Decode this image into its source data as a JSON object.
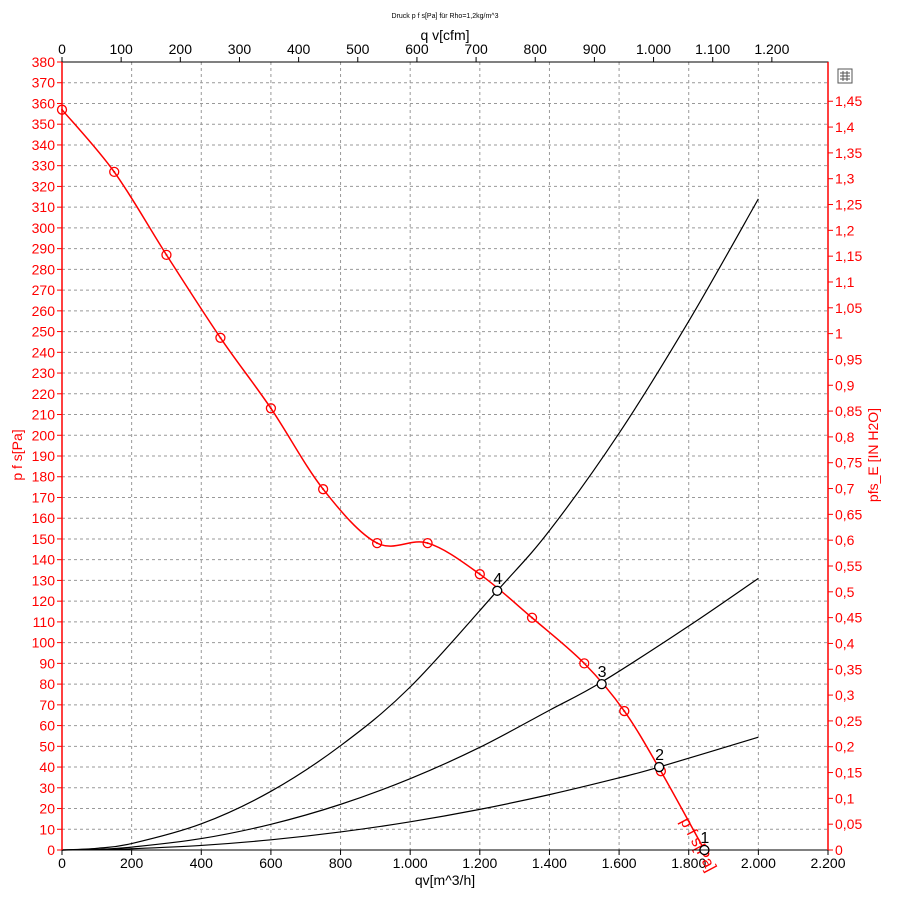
{
  "chart_data": {
    "type": "line",
    "title": "Druck p f s[Pa] für Rho=1,2kg/m^3",
    "xlabel": "qv[m^3/h]",
    "x2label": "q v[cfm]",
    "ylabel": "p f s[Pa]",
    "y2label": "pfs_E [IN H2O]",
    "xlim": [
      0,
      2200
    ],
    "ylim": [
      0,
      380
    ],
    "x2lim": [
      0,
      1294.9
    ],
    "y2lim": [
      0,
      1.526
    ],
    "x_ticks": [
      "0",
      "200",
      "400",
      "600",
      "800",
      "1.000",
      "1.200",
      "1.400",
      "1.600",
      "1.800",
      "2.000",
      "2.200"
    ],
    "x2_ticks": [
      "0",
      "100",
      "200",
      "300",
      "400",
      "500",
      "600",
      "700",
      "800",
      "900",
      "1.000",
      "1.100",
      "1.200"
    ],
    "y_ticks": [
      "0",
      "10",
      "20",
      "30",
      "40",
      "50",
      "60",
      "70",
      "80",
      "90",
      "100",
      "110",
      "120",
      "130",
      "140",
      "150",
      "160",
      "170",
      "180",
      "190",
      "200",
      "210",
      "220",
      "230",
      "240",
      "250",
      "260",
      "270",
      "280",
      "290",
      "300",
      "310",
      "320",
      "330",
      "340",
      "350",
      "360",
      "370",
      "380"
    ],
    "y2_ticks": [
      "0",
      "0,05",
      "0,1",
      "0,15",
      "0,2",
      "0,25",
      "0,3",
      "0,35",
      "0,4",
      "0,45",
      "0,5",
      "0,55",
      "0,6",
      "0,65",
      "0,7",
      "0,75",
      "0,8",
      "0,85",
      "0,9",
      "0,95",
      "1",
      "1,05",
      "1,1",
      "1,15",
      "1,2",
      "1,25",
      "1,3",
      "1,35",
      "1,4",
      "1,45"
    ],
    "grid": true,
    "fan_curve": {
      "name": "p f s[Pa]",
      "color": "#ff0000",
      "x": [
        0,
        150,
        300,
        455,
        600,
        750,
        905,
        1050,
        1200,
        1350,
        1500,
        1615,
        1720,
        1845
      ],
      "y": [
        357,
        327,
        287,
        247,
        213,
        174,
        148,
        148,
        133,
        112,
        90,
        67,
        38,
        0
      ]
    },
    "system_curves": [
      {
        "color": "#000000",
        "x": [
          0,
          100,
          200,
          400,
          600,
          800,
          1000,
          1250,
          1400,
          1600,
          1800,
          2000
        ],
        "y": [
          0,
          0.8,
          3.1,
          12.6,
          28.3,
          50.3,
          78.6,
          125,
          154,
          201,
          255,
          314
        ]
      },
      {
        "color": "#000000",
        "x": [
          0,
          100,
          200,
          400,
          600,
          800,
          1000,
          1200,
          1400,
          1550,
          1800,
          2000
        ],
        "y": [
          0,
          0.3,
          1.4,
          5.5,
          12.4,
          22.0,
          34.4,
          49.5,
          67.4,
          81,
          108,
          131
        ]
      },
      {
        "color": "#000000",
        "x": [
          0,
          100,
          200,
          400,
          600,
          800,
          1000,
          1200,
          1400,
          1600,
          1715,
          2000
        ],
        "y": [
          0,
          0.2,
          0.6,
          2.2,
          4.9,
          8.7,
          13.6,
          19.6,
          26.7,
          34.8,
          40,
          54.4
        ]
      }
    ],
    "operating_points": [
      {
        "label": "1",
        "x": 1845,
        "y": 0
      },
      {
        "label": "2",
        "x": 1715,
        "y": 40
      },
      {
        "label": "3",
        "x": 1550,
        "y": 80
      },
      {
        "label": "4",
        "x": 1250,
        "y": 125
      }
    ]
  }
}
